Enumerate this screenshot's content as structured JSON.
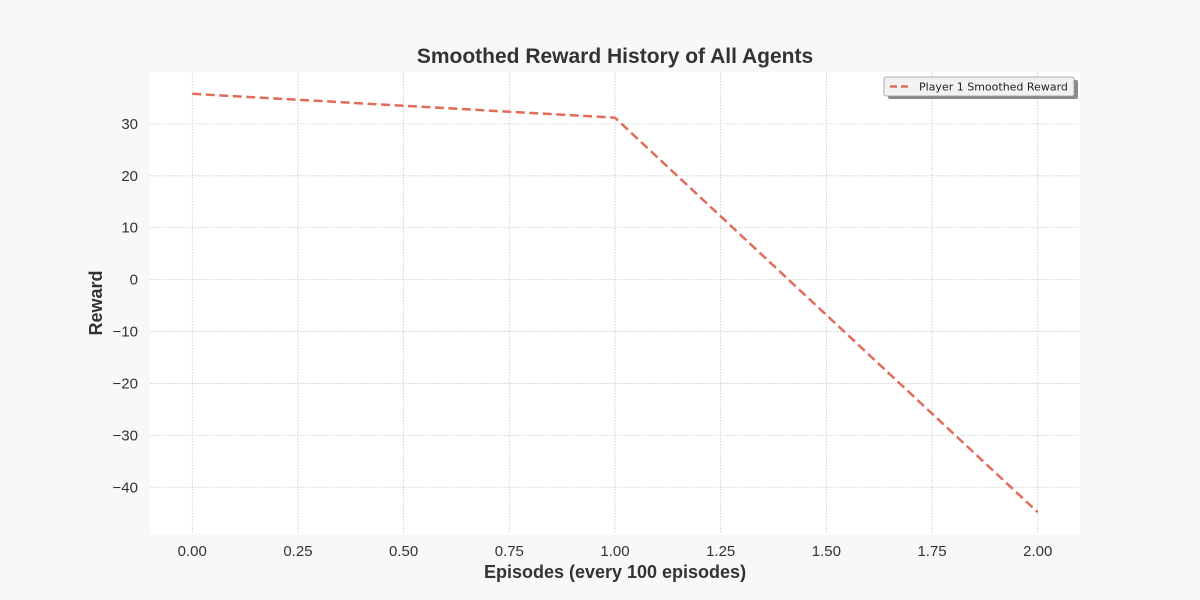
{
  "chart_data": {
    "type": "line",
    "title": "Smoothed Reward History of All Agents",
    "xlabel": "Episodes (every 100 episodes)",
    "ylabel": "Reward",
    "xlim": [
      -0.1,
      2.1
    ],
    "ylim": [
      -49,
      40
    ],
    "xticks": [
      0.0,
      0.25,
      0.5,
      0.75,
      1.0,
      1.25,
      1.5,
      1.75,
      2.0
    ],
    "xtick_labels": [
      "0.00",
      "0.25",
      "0.50",
      "0.75",
      "1.00",
      "1.25",
      "1.50",
      "1.75",
      "2.00"
    ],
    "yticks": [
      30,
      20,
      10,
      0,
      -10,
      -20,
      -30,
      -40
    ],
    "ytick_labels": [
      "30",
      "20",
      "10",
      "0",
      "−10",
      "−20",
      "−30",
      "−40"
    ],
    "grid": true,
    "legend_position": "top-right",
    "series": [
      {
        "name": "Player 1 Smoothed Reward",
        "x": [
          0,
          1,
          2
        ],
        "y": [
          35.8,
          31.2,
          -44.8
        ],
        "color": "#e06c5a",
        "style": "dashed"
      }
    ]
  },
  "colors": {
    "background": "#f8f8f8",
    "plot_area": "#ffffff",
    "grid": "#c8c8c8",
    "text": "#333333"
  }
}
